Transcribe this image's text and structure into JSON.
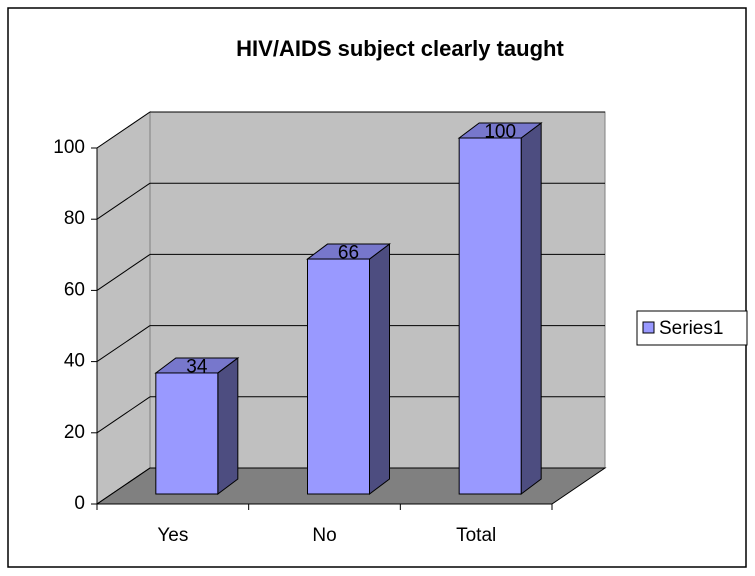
{
  "chart_data": {
    "type": "bar",
    "title": "HIV/AIDS subject clearly taught",
    "categories": [
      "Yes",
      "No",
      "Total"
    ],
    "series": [
      {
        "name": "Series1",
        "color": "#9999ff",
        "values": [
          34,
          66,
          100
        ]
      }
    ],
    "ylim": [
      0,
      100
    ],
    "yticks": [
      0,
      20,
      40,
      60,
      80,
      100
    ],
    "grid": true,
    "legend": "right"
  }
}
